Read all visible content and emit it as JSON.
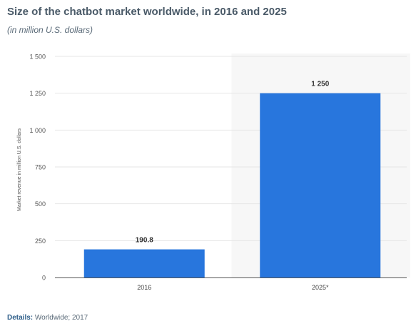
{
  "chart_data": {
    "type": "bar",
    "title": "Size of the chatbot market worldwide, in 2016 and 2025",
    "subtitle": "(in million U.S. dollars)",
    "categories": [
      "2016",
      "2025*"
    ],
    "values": [
      190.8,
      1250
    ],
    "data_labels": [
      "190.8",
      "1 250"
    ],
    "xlabel": "",
    "ylabel": "Market revenue in million U.S. dollars",
    "ylim": [
      0,
      1500
    ],
    "yticks": [
      0,
      250,
      500,
      750,
      1000,
      1250,
      1500
    ],
    "ytick_labels": [
      "0",
      "250",
      "500",
      "750",
      "1 000",
      "1 250",
      "1 500"
    ],
    "grid": true,
    "legend": "none",
    "bar_color": "#2876dd",
    "forecast_shading_color": "#f7f7f7"
  },
  "footer": {
    "details_label": "Details:",
    "details_text": "Worldwide; 2017"
  }
}
